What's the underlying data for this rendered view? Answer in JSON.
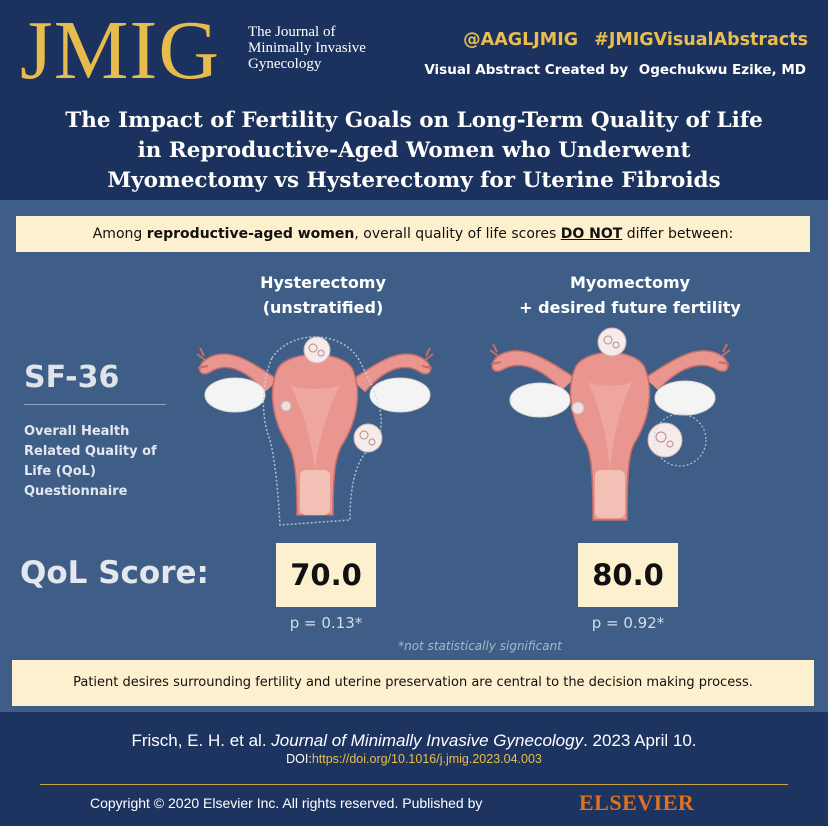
{
  "header": {
    "logo": "JMIG",
    "logo_subtitle": [
      "The Journal of",
      "Minimally Invasive",
      "Gynecology"
    ],
    "handle": "@AAGLJMIG",
    "hashtag": "#JMIGVisualAbstracts",
    "credit_prefix": "Visual Abstract Created by",
    "credit_author": "Ogechukwu Ezike, MD",
    "title_lines": [
      "The Impact of Fertility Goals on Long-Term Quality of Life",
      "in Reproductive-Aged Women who Underwent",
      "Myomectomy vs Hysterectomy for Uterine Fibroids"
    ]
  },
  "summary": {
    "pre": "Among ",
    "bold": "reproductive-aged women",
    "mid": ", overall quality of life scores ",
    "emph": "DO NOT",
    "post": " differ between:"
  },
  "instrument": {
    "name": "SF-36",
    "description_lines": [
      "Overall Health",
      "Related Quality of",
      "Life (QoL)",
      "Questionnaire"
    ]
  },
  "groups": [
    {
      "label_lines": [
        "Hysterectomy",
        "(unstratified)"
      ],
      "score": "70.0",
      "p_value": "p = 0.13*"
    },
    {
      "label_lines": [
        "Myomectomy",
        "+ desired future fertility"
      ],
      "score": "80.0",
      "p_value": "p = 0.92*"
    }
  ],
  "qol_label": "QoL Score:",
  "footnote": "*not statistically significant",
  "conclusion": "Patient desires surrounding fertility and uterine preservation are central to the decision making process.",
  "citation": {
    "authors": "Frisch, E. H. et al. ",
    "journal": "Journal of Minimally Invasive Gynecology",
    "date": ". 2023 April 10.",
    "doi_label": "DOI:",
    "doi_url": "https://doi.org/10.1016/j.jmig.2023.04.003"
  },
  "footer": {
    "copyright": "Copyright © 2020 Elsevier Inc. All rights reserved. Published by",
    "publisher_logo": "ELSEVIER"
  },
  "colors": {
    "navy": "#1c325e",
    "panel": "#3e5e87",
    "gold": "#e7bb4d",
    "cream": "#fdf0cf",
    "uterus": "#e8968f",
    "elsevier_orange": "#e1711f"
  },
  "icons": [
    "uterus-hysterectomy-illustration",
    "uterus-myomectomy-illustration",
    "fibroid-icon",
    "ovary-icon"
  ]
}
